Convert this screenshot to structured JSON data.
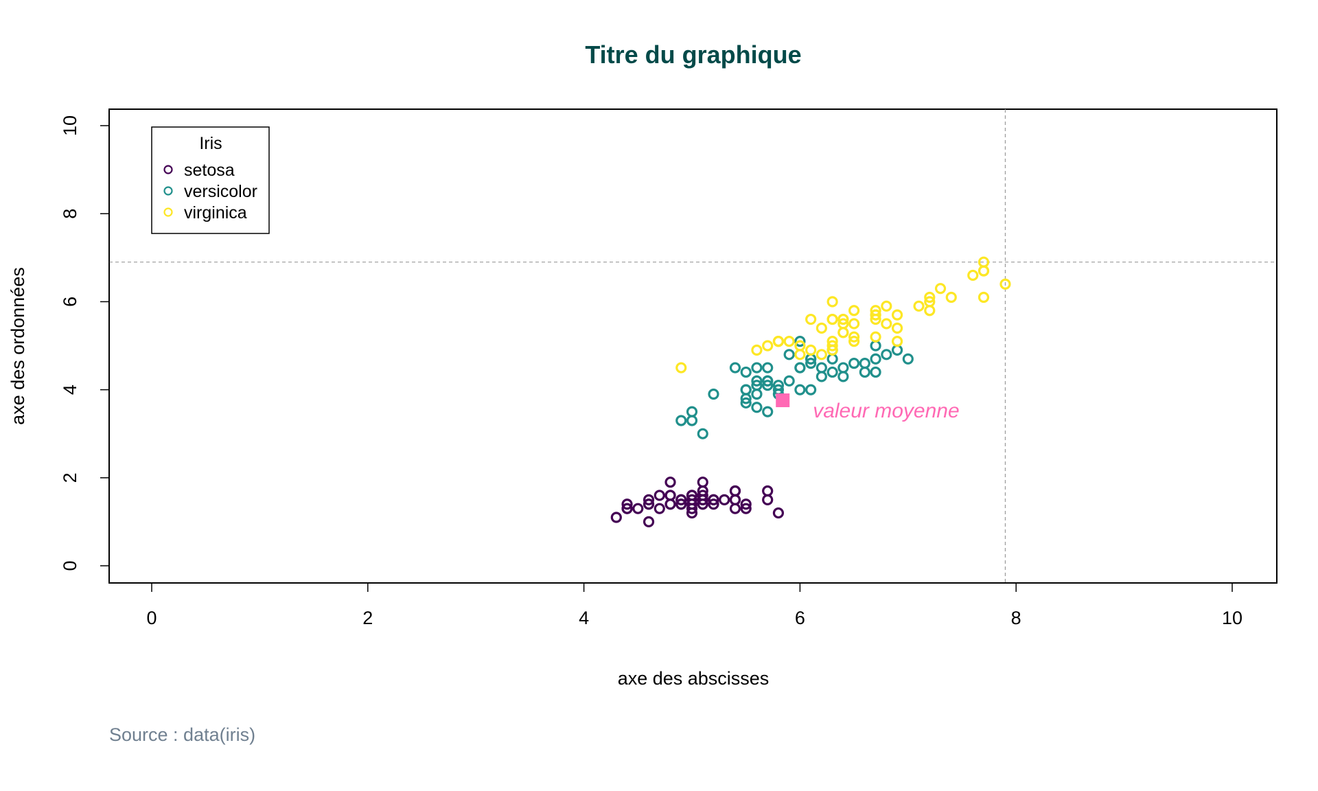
{
  "colors": {
    "title": "#034a49",
    "setosa": "#440154",
    "versicolor": "#21908C",
    "virginica": "#FDE725",
    "mean": "#FF69B4",
    "caption": "#708090",
    "reference_lines": "#999999"
  },
  "chart_data": {
    "type": "scatter",
    "title": "Titre du graphique",
    "xlabel": "axe des abscisses",
    "ylabel": "axe des ordonnées",
    "xlim": [
      0,
      10
    ],
    "ylim": [
      0,
      10
    ],
    "x_ticks": [
      "0",
      "2",
      "4",
      "6",
      "8",
      "10"
    ],
    "y_ticks": [
      "0",
      "2",
      "4",
      "6",
      "8",
      "10"
    ],
    "grid": false,
    "legend": {
      "title": "Iris",
      "position": "top-left",
      "entries": [
        "setosa",
        "versicolor",
        "virginica"
      ]
    },
    "reference_lines": {
      "vertical_x": 7.9,
      "horizontal_y": 6.9
    },
    "mean_point": {
      "x": 5.84,
      "y": 3.76,
      "label": "valeur moyenne"
    },
    "series": [
      {
        "name": "setosa",
        "color": "#440154",
        "points": [
          [
            5.1,
            1.4
          ],
          [
            4.9,
            1.4
          ],
          [
            4.7,
            1.3
          ],
          [
            4.6,
            1.5
          ],
          [
            5.0,
            1.4
          ],
          [
            5.4,
            1.7
          ],
          [
            4.6,
            1.4
          ],
          [
            5.0,
            1.5
          ],
          [
            4.4,
            1.4
          ],
          [
            4.9,
            1.5
          ],
          [
            5.4,
            1.5
          ],
          [
            4.8,
            1.6
          ],
          [
            4.8,
            1.4
          ],
          [
            4.3,
            1.1
          ],
          [
            5.8,
            1.2
          ],
          [
            5.7,
            1.5
          ],
          [
            5.4,
            1.3
          ],
          [
            5.1,
            1.4
          ],
          [
            5.7,
            1.7
          ],
          [
            5.1,
            1.5
          ],
          [
            5.4,
            1.7
          ],
          [
            5.1,
            1.5
          ],
          [
            4.6,
            1.0
          ],
          [
            5.1,
            1.7
          ],
          [
            4.8,
            1.9
          ],
          [
            5.0,
            1.6
          ],
          [
            5.0,
            1.6
          ],
          [
            5.2,
            1.5
          ],
          [
            5.2,
            1.4
          ],
          [
            4.7,
            1.6
          ],
          [
            4.8,
            1.6
          ],
          [
            5.4,
            1.5
          ],
          [
            5.2,
            1.5
          ],
          [
            5.5,
            1.4
          ],
          [
            4.9,
            1.5
          ],
          [
            5.0,
            1.2
          ],
          [
            5.5,
            1.3
          ],
          [
            4.9,
            1.4
          ],
          [
            4.4,
            1.3
          ],
          [
            5.1,
            1.5
          ],
          [
            5.0,
            1.3
          ],
          [
            4.5,
            1.3
          ],
          [
            4.4,
            1.3
          ],
          [
            5.0,
            1.6
          ],
          [
            5.1,
            1.9
          ],
          [
            4.8,
            1.4
          ],
          [
            5.1,
            1.6
          ],
          [
            4.6,
            1.4
          ],
          [
            5.3,
            1.5
          ],
          [
            5.0,
            1.4
          ]
        ]
      },
      {
        "name": "versicolor",
        "color": "#21908C",
        "points": [
          [
            7.0,
            4.7
          ],
          [
            6.4,
            4.5
          ],
          [
            6.9,
            4.9
          ],
          [
            5.5,
            4.0
          ],
          [
            6.5,
            4.6
          ],
          [
            5.7,
            4.5
          ],
          [
            6.3,
            4.7
          ],
          [
            4.9,
            3.3
          ],
          [
            6.6,
            4.6
          ],
          [
            5.2,
            3.9
          ],
          [
            5.0,
            3.5
          ],
          [
            5.9,
            4.2
          ],
          [
            6.0,
            4.0
          ],
          [
            6.1,
            4.7
          ],
          [
            5.6,
            3.6
          ],
          [
            6.7,
            4.4
          ],
          [
            5.6,
            4.5
          ],
          [
            5.8,
            4.1
          ],
          [
            6.2,
            4.5
          ],
          [
            5.6,
            3.9
          ],
          [
            5.9,
            4.8
          ],
          [
            6.1,
            4.0
          ],
          [
            6.3,
            4.9
          ],
          [
            6.1,
            4.7
          ],
          [
            6.4,
            4.3
          ],
          [
            6.6,
            4.4
          ],
          [
            6.8,
            4.8
          ],
          [
            6.7,
            5.0
          ],
          [
            6.0,
            4.5
          ],
          [
            5.7,
            3.5
          ],
          [
            5.5,
            3.8
          ],
          [
            5.5,
            3.7
          ],
          [
            5.8,
            3.9
          ],
          [
            6.0,
            5.1
          ],
          [
            5.4,
            4.5
          ],
          [
            6.0,
            4.5
          ],
          [
            6.7,
            4.7
          ],
          [
            6.3,
            4.4
          ],
          [
            5.6,
            4.1
          ],
          [
            5.5,
            4.0
          ],
          [
            5.5,
            4.4
          ],
          [
            6.1,
            4.6
          ],
          [
            5.8,
            4.0
          ],
          [
            5.0,
            3.3
          ],
          [
            5.6,
            4.2
          ],
          [
            5.7,
            4.2
          ],
          [
            5.7,
            4.2
          ],
          [
            6.2,
            4.3
          ],
          [
            5.1,
            3.0
          ],
          [
            5.7,
            4.1
          ]
        ]
      },
      {
        "name": "virginica",
        "color": "#FDE725",
        "points": [
          [
            6.3,
            6.0
          ],
          [
            5.8,
            5.1
          ],
          [
            7.1,
            5.9
          ],
          [
            6.3,
            5.6
          ],
          [
            6.5,
            5.8
          ],
          [
            7.6,
            6.6
          ],
          [
            4.9,
            4.5
          ],
          [
            7.3,
            6.3
          ],
          [
            6.7,
            5.8
          ],
          [
            7.2,
            6.1
          ],
          [
            6.5,
            5.1
          ],
          [
            6.4,
            5.3
          ],
          [
            6.8,
            5.5
          ],
          [
            5.7,
            5.0
          ],
          [
            5.8,
            5.1
          ],
          [
            6.4,
            5.3
          ],
          [
            6.5,
            5.5
          ],
          [
            7.7,
            6.7
          ],
          [
            7.7,
            6.9
          ],
          [
            6.0,
            5.0
          ],
          [
            6.9,
            5.7
          ],
          [
            5.6,
            4.9
          ],
          [
            7.7,
            6.7
          ],
          [
            6.3,
            4.9
          ],
          [
            6.7,
            5.7
          ],
          [
            7.2,
            6.0
          ],
          [
            6.2,
            4.8
          ],
          [
            6.1,
            4.9
          ],
          [
            6.4,
            5.6
          ],
          [
            7.2,
            5.8
          ],
          [
            7.4,
            6.1
          ],
          [
            7.9,
            6.4
          ],
          [
            6.4,
            5.6
          ],
          [
            6.3,
            5.1
          ],
          [
            6.1,
            5.6
          ],
          [
            7.7,
            6.1
          ],
          [
            6.3,
            5.6
          ],
          [
            6.4,
            5.5
          ],
          [
            6.0,
            4.8
          ],
          [
            6.9,
            5.4
          ],
          [
            6.7,
            5.6
          ],
          [
            6.9,
            5.1
          ],
          [
            5.8,
            5.1
          ],
          [
            6.8,
            5.9
          ],
          [
            6.7,
            5.7
          ],
          [
            6.7,
            5.2
          ],
          [
            6.3,
            5.0
          ],
          [
            6.5,
            5.2
          ],
          [
            6.2,
            5.4
          ],
          [
            5.9,
            5.1
          ]
        ]
      }
    ]
  },
  "caption": "Source : data(iris)"
}
